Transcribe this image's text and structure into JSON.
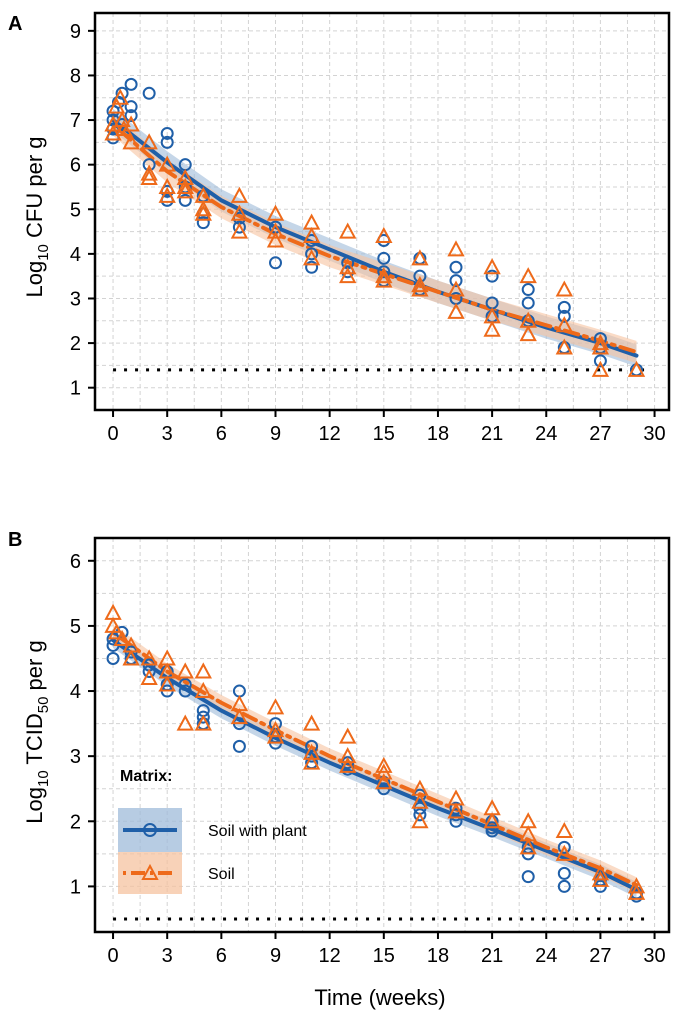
{
  "colors": {
    "plant": "#1f5fa8",
    "soil": "#ee6a1a",
    "plant_band": "#9fbbd9",
    "soil_band": "#f6c3a0",
    "grid": "#d3d3d3"
  },
  "legend": {
    "title": "Matrix:",
    "items": [
      "Soil with plant",
      "Soil"
    ]
  },
  "chart_data": [
    {
      "type": "scatter",
      "panel": "A",
      "xlabel": "",
      "ylabel_main": "Log",
      "ylabel_sub": "10",
      "ylabel_rest": " CFU per g",
      "xlim": [
        -1,
        30.8
      ],
      "ylim": [
        0.5,
        9.4
      ],
      "xticks": [
        0,
        3,
        6,
        9,
        12,
        15,
        18,
        21,
        24,
        27,
        30
      ],
      "yticks": [
        1,
        2,
        3,
        4,
        5,
        6,
        7,
        8,
        9
      ],
      "detection_limit": 1.4,
      "series": [
        {
          "name": "Soil with plant",
          "marker": "circle",
          "fit": [
            [
              0,
              7.0
            ],
            [
              3,
              6.05
            ],
            [
              6,
              5.2
            ],
            [
              9,
              4.6
            ],
            [
              12,
              4.1
            ],
            [
              15,
              3.6
            ],
            [
              18,
              3.15
            ],
            [
              21,
              2.75
            ],
            [
              24,
              2.35
            ],
            [
              27,
              2.0
            ],
            [
              29,
              1.72
            ]
          ],
          "band": 0.25,
          "points": [
            [
              0,
              6.6
            ],
            [
              0,
              6.8
            ],
            [
              0,
              7.0
            ],
            [
              0,
              7.2
            ],
            [
              0.3,
              7.4
            ],
            [
              0.5,
              7.6
            ],
            [
              0.5,
              6.9
            ],
            [
              1,
              7.8
            ],
            [
              1,
              7.3
            ],
            [
              1,
              7.1
            ],
            [
              2,
              7.6
            ],
            [
              2,
              6.0
            ],
            [
              3,
              6.7
            ],
            [
              3,
              6.5
            ],
            [
              3,
              5.4
            ],
            [
              3,
              5.2
            ],
            [
              4,
              6.0
            ],
            [
              4,
              5.5
            ],
            [
              4,
              5.2
            ],
            [
              5,
              5.3
            ],
            [
              5,
              4.9
            ],
            [
              5,
              4.7
            ],
            [
              7,
              4.8
            ],
            [
              7,
              4.6
            ],
            [
              9,
              3.8
            ],
            [
              9,
              4.6
            ],
            [
              11,
              4.3
            ],
            [
              11,
              4.0
            ],
            [
              11,
              3.7
            ],
            [
              13,
              3.8
            ],
            [
              13,
              3.6
            ],
            [
              15,
              3.9
            ],
            [
              15,
              3.6
            ],
            [
              15,
              3.4
            ],
            [
              15,
              4.3
            ],
            [
              17,
              3.9
            ],
            [
              17,
              3.5
            ],
            [
              17,
              3.2
            ],
            [
              19,
              3.7
            ],
            [
              19,
              3.4
            ],
            [
              19,
              3.0
            ],
            [
              21,
              3.5
            ],
            [
              21,
              2.9
            ],
            [
              21,
              2.6
            ],
            [
              23,
              3.2
            ],
            [
              23,
              2.9
            ],
            [
              23,
              2.5
            ],
            [
              25,
              2.8
            ],
            [
              25,
              2.6
            ],
            [
              25,
              1.9
            ],
            [
              27,
              2.1
            ],
            [
              27,
              1.9
            ],
            [
              27,
              1.6
            ],
            [
              29,
              1.4
            ]
          ]
        },
        {
          "name": "Soil",
          "marker": "triangle",
          "fit": [
            [
              0,
              6.9
            ],
            [
              3,
              5.85
            ],
            [
              6,
              5.05
            ],
            [
              9,
              4.45
            ],
            [
              12,
              3.95
            ],
            [
              15,
              3.55
            ],
            [
              18,
              3.15
            ],
            [
              21,
              2.75
            ],
            [
              24,
              2.4
            ],
            [
              27,
              2.05
            ],
            [
              29,
              1.8
            ]
          ],
          "band": 0.25,
          "points": [
            [
              0,
              6.7
            ],
            [
              0,
              6.9
            ],
            [
              0.2,
              7.3
            ],
            [
              0.4,
              7.5
            ],
            [
              0.5,
              7.0
            ],
            [
              0.6,
              6.8
            ],
            [
              1,
              6.5
            ],
            [
              1,
              6.9
            ],
            [
              2,
              6.5
            ],
            [
              2,
              5.8
            ],
            [
              2,
              5.7
            ],
            [
              3,
              6.0
            ],
            [
              3,
              5.5
            ],
            [
              3,
              5.3
            ],
            [
              4,
              5.7
            ],
            [
              4,
              5.5
            ],
            [
              4,
              5.4
            ],
            [
              5,
              5.3
            ],
            [
              5,
              5.0
            ],
            [
              5,
              4.9
            ],
            [
              7,
              5.3
            ],
            [
              7,
              4.9
            ],
            [
              7,
              4.5
            ],
            [
              9,
              4.9
            ],
            [
              9,
              4.5
            ],
            [
              9,
              4.3
            ],
            [
              11,
              4.7
            ],
            [
              11,
              4.4
            ],
            [
              11,
              3.9
            ],
            [
              13,
              4.5
            ],
            [
              13,
              3.7
            ],
            [
              13,
              3.5
            ],
            [
              15,
              4.4
            ],
            [
              15,
              3.5
            ],
            [
              15,
              3.4
            ],
            [
              17,
              3.9
            ],
            [
              17,
              3.3
            ],
            [
              17,
              3.2
            ],
            [
              19,
              4.1
            ],
            [
              19,
              3.2
            ],
            [
              19,
              2.7
            ],
            [
              21,
              3.7
            ],
            [
              21,
              2.6
            ],
            [
              21,
              2.3
            ],
            [
              23,
              3.5
            ],
            [
              23,
              2.5
            ],
            [
              23,
              2.2
            ],
            [
              25,
              3.2
            ],
            [
              25,
              2.4
            ],
            [
              25,
              1.9
            ],
            [
              27,
              2.0
            ],
            [
              27,
              1.9
            ],
            [
              27,
              1.4
            ],
            [
              29,
              1.4
            ]
          ]
        }
      ]
    },
    {
      "type": "scatter",
      "panel": "B",
      "xlabel": "Time (weeks)",
      "ylabel_main": "Log",
      "ylabel_sub": "10",
      "ylabel_rest": " TCID",
      "ylabel_sub2": "50",
      "ylabel_end": " per g",
      "xlim": [
        -1,
        30.8
      ],
      "ylim": [
        0.3,
        6.35
      ],
      "xticks": [
        0,
        3,
        6,
        9,
        12,
        15,
        18,
        21,
        24,
        27,
        30
      ],
      "yticks": [
        1,
        2,
        3,
        4,
        5,
        6
      ],
      "detection_limit": 0.5,
      "series": [
        {
          "name": "Soil with plant",
          "marker": "circle",
          "fit": [
            [
              0,
              4.78
            ],
            [
              3,
              4.2
            ],
            [
              6,
              3.7
            ],
            [
              9,
              3.28
            ],
            [
              12,
              2.9
            ],
            [
              15,
              2.55
            ],
            [
              18,
              2.2
            ],
            [
              21,
              1.88
            ],
            [
              24,
              1.55
            ],
            [
              27,
              1.22
            ],
            [
              29,
              0.95
            ]
          ],
          "band": 0.12,
          "points": [
            [
              0,
              4.8
            ],
            [
              0,
              4.7
            ],
            [
              0,
              4.5
            ],
            [
              0.5,
              4.9
            ],
            [
              1,
              4.6
            ],
            [
              1,
              4.5
            ],
            [
              2,
              4.4
            ],
            [
              2,
              4.3
            ],
            [
              3,
              4.3
            ],
            [
              3,
              4.1
            ],
            [
              3,
              4.0
            ],
            [
              4,
              4.1
            ],
            [
              4,
              4.0
            ],
            [
              5,
              3.7
            ],
            [
              5,
              3.6
            ],
            [
              5,
              3.5
            ],
            [
              7,
              4.0
            ],
            [
              7,
              3.5
            ],
            [
              7,
              3.15
            ],
            [
              9,
              3.5
            ],
            [
              9,
              3.3
            ],
            [
              9,
              3.2
            ],
            [
              11,
              3.15
            ],
            [
              11,
              3.0
            ],
            [
              11,
              2.9
            ],
            [
              13,
              2.9
            ],
            [
              13,
              2.8
            ],
            [
              15,
              2.6
            ],
            [
              15,
              2.5
            ],
            [
              17,
              2.4
            ],
            [
              17,
              2.2
            ],
            [
              17,
              2.1
            ],
            [
              19,
              2.2
            ],
            [
              19,
              2.1
            ],
            [
              19,
              2.0
            ],
            [
              21,
              2.0
            ],
            [
              21,
              1.9
            ],
            [
              21,
              1.85
            ],
            [
              23,
              1.6
            ],
            [
              23,
              1.5
            ],
            [
              23,
              1.15
            ],
            [
              25,
              1.6
            ],
            [
              25,
              1.2
            ],
            [
              25,
              1.0
            ],
            [
              27,
              1.1
            ],
            [
              27,
              1.0
            ],
            [
              29,
              0.9
            ],
            [
              29,
              0.85
            ]
          ]
        },
        {
          "name": "Soil",
          "marker": "triangle",
          "fit": [
            [
              0,
              4.9
            ],
            [
              3,
              4.3
            ],
            [
              6,
              3.82
            ],
            [
              9,
              3.4
            ],
            [
              12,
              3.0
            ],
            [
              15,
              2.65
            ],
            [
              18,
              2.3
            ],
            [
              21,
              1.95
            ],
            [
              24,
              1.6
            ],
            [
              27,
              1.28
            ],
            [
              29,
              1.02
            ]
          ],
          "band": 0.12,
          "points": [
            [
              0,
              5.2
            ],
            [
              0,
              5.0
            ],
            [
              0.2,
              4.9
            ],
            [
              0.5,
              4.8
            ],
            [
              1,
              4.7
            ],
            [
              1,
              4.5
            ],
            [
              2,
              4.5
            ],
            [
              2,
              4.2
            ],
            [
              3,
              4.5
            ],
            [
              3,
              4.3
            ],
            [
              3,
              4.1
            ],
            [
              4,
              4.3
            ],
            [
              4,
              3.5
            ],
            [
              5,
              4.3
            ],
            [
              5,
              4.0
            ],
            [
              5,
              3.5
            ],
            [
              7,
              3.8
            ],
            [
              7,
              3.6
            ],
            [
              9,
              3.75
            ],
            [
              9,
              3.4
            ],
            [
              9,
              3.3
            ],
            [
              11,
              3.5
            ],
            [
              11,
              3.05
            ],
            [
              11,
              2.9
            ],
            [
              13,
              3.3
            ],
            [
              13,
              3.0
            ],
            [
              13,
              2.85
            ],
            [
              15,
              2.85
            ],
            [
              15,
              2.75
            ],
            [
              15,
              2.6
            ],
            [
              17,
              2.5
            ],
            [
              17,
              2.3
            ],
            [
              17,
              2.0
            ],
            [
              19,
              2.35
            ],
            [
              19,
              2.15
            ],
            [
              21,
              2.2
            ],
            [
              21,
              2.0
            ],
            [
              23,
              2.0
            ],
            [
              23,
              1.8
            ],
            [
              23,
              1.6
            ],
            [
              25,
              1.85
            ],
            [
              25,
              1.5
            ],
            [
              27,
              1.2
            ],
            [
              27,
              1.1
            ],
            [
              29,
              1.0
            ],
            [
              29,
              0.9
            ]
          ]
        }
      ]
    }
  ]
}
